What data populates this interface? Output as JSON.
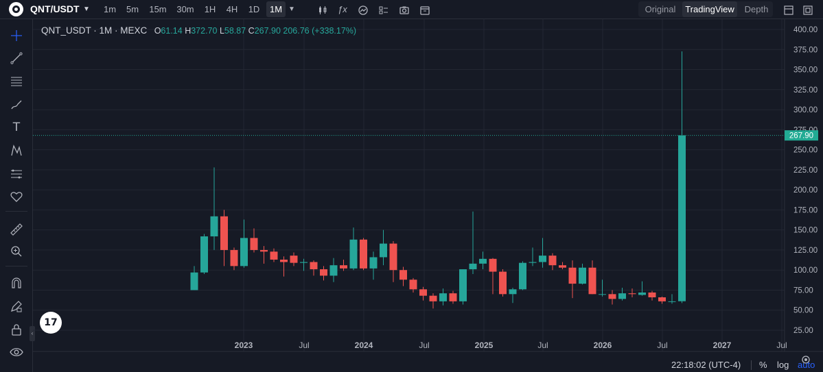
{
  "toolbar": {
    "symbol": "QNT/USDT",
    "intervals": [
      "1m",
      "5m",
      "15m",
      "30m",
      "1H",
      "4H",
      "1D",
      "1M"
    ],
    "active_interval": "1M",
    "views": [
      "Original",
      "TradingView",
      "Depth"
    ],
    "active_view": "TradingView"
  },
  "legend": {
    "title": "QNT_USDT · 1M · MEXC",
    "o_label": "O",
    "o_value": "61.14",
    "h_label": "H",
    "h_value": "372.70",
    "l_label": "L",
    "l_value": "58.87",
    "c_label": "C",
    "c_value": "267.90",
    "change": "206.76 (+338.17%)"
  },
  "price_axis": {
    "labels": [
      "400.00",
      "375.00",
      "350.00",
      "325.00",
      "300.00",
      "275.00",
      "250.00",
      "225.00",
      "200.00",
      "175.00",
      "150.00",
      "125.00",
      "100.00",
      "75.00",
      "50.00",
      "25.00"
    ],
    "last_price": "267.90"
  },
  "time_axis": {
    "labels": [
      "2023",
      "Jul",
      "2024",
      "Jul",
      "2025",
      "Jul",
      "2026",
      "Jul",
      "2027",
      "Jul"
    ]
  },
  "footer": {
    "time": "22:18:02 (UTC-4)",
    "percent": "%",
    "log": "log",
    "auto": "auto"
  },
  "tv_logo": "17",
  "colors": {
    "up": "#26a69a",
    "down": "#ef5350",
    "background": "#161a25",
    "grid": "#232733",
    "last_price_line": "#22ab94",
    "auto_active": "#2962ff"
  },
  "chart_data": {
    "type": "candlestick",
    "ylim": [
      20,
      405
    ],
    "y_ticks": [
      25,
      50,
      75,
      100,
      125,
      150,
      175,
      200,
      225,
      250,
      275,
      300,
      325,
      350,
      375,
      400
    ],
    "candles": [
      {
        "o": 75,
        "h": 105,
        "l": 75,
        "c": 97
      },
      {
        "o": 97,
        "h": 145,
        "l": 95,
        "c": 142
      },
      {
        "o": 142,
        "h": 228,
        "l": 125,
        "c": 167
      },
      {
        "o": 167,
        "h": 175,
        "l": 105,
        "c": 125
      },
      {
        "o": 125,
        "h": 128,
        "l": 100,
        "c": 105
      },
      {
        "o": 105,
        "h": 163,
        "l": 103,
        "c": 140
      },
      {
        "o": 140,
        "h": 152,
        "l": 122,
        "c": 125
      },
      {
        "o": 125,
        "h": 130,
        "l": 108,
        "c": 123
      },
      {
        "o": 123,
        "h": 127,
        "l": 110,
        "c": 113
      },
      {
        "o": 113,
        "h": 117,
        "l": 92,
        "c": 110
      },
      {
        "o": 118,
        "h": 122,
        "l": 105,
        "c": 109
      },
      {
        "o": 109,
        "h": 114,
        "l": 99,
        "c": 110
      },
      {
        "o": 110,
        "h": 112,
        "l": 93,
        "c": 101
      },
      {
        "o": 101,
        "h": 105,
        "l": 87,
        "c": 93
      },
      {
        "o": 93,
        "h": 115,
        "l": 85,
        "c": 106
      },
      {
        "o": 106,
        "h": 113,
        "l": 99,
        "c": 102
      },
      {
        "o": 102,
        "h": 153,
        "l": 100,
        "c": 138
      },
      {
        "o": 138,
        "h": 140,
        "l": 100,
        "c": 102
      },
      {
        "o": 102,
        "h": 123,
        "l": 88,
        "c": 116
      },
      {
        "o": 116,
        "h": 150,
        "l": 106,
        "c": 133
      },
      {
        "o": 133,
        "h": 136,
        "l": 85,
        "c": 100
      },
      {
        "o": 100,
        "h": 104,
        "l": 80,
        "c": 88
      },
      {
        "o": 88,
        "h": 90,
        "l": 72,
        "c": 76
      },
      {
        "o": 76,
        "h": 79,
        "l": 62,
        "c": 68
      },
      {
        "o": 68,
        "h": 71,
        "l": 52,
        "c": 61
      },
      {
        "o": 61,
        "h": 77,
        "l": 56,
        "c": 71
      },
      {
        "o": 71,
        "h": 74,
        "l": 58,
        "c": 61
      },
      {
        "o": 61,
        "h": 101,
        "l": 57,
        "c": 101
      },
      {
        "o": 101,
        "h": 173,
        "l": 95,
        "c": 108
      },
      {
        "o": 108,
        "h": 123,
        "l": 101,
        "c": 114
      },
      {
        "o": 114,
        "h": 115,
        "l": 70,
        "c": 98
      },
      {
        "o": 98,
        "h": 101,
        "l": 67,
        "c": 70
      },
      {
        "o": 70,
        "h": 78,
        "l": 59,
        "c": 76
      },
      {
        "o": 76,
        "h": 111,
        "l": 75,
        "c": 109
      },
      {
        "o": 109,
        "h": 128,
        "l": 105,
        "c": 110
      },
      {
        "o": 110,
        "h": 140,
        "l": 103,
        "c": 118
      },
      {
        "o": 118,
        "h": 121,
        "l": 100,
        "c": 106
      },
      {
        "o": 106,
        "h": 110,
        "l": 101,
        "c": 103
      },
      {
        "o": 103,
        "h": 112,
        "l": 65,
        "c": 83
      },
      {
        "o": 83,
        "h": 108,
        "l": 82,
        "c": 103
      },
      {
        "o": 103,
        "h": 112,
        "l": 70,
        "c": 70
      },
      {
        "o": 70,
        "h": 88,
        "l": 67,
        "c": 70
      },
      {
        "o": 70,
        "h": 75,
        "l": 57,
        "c": 64
      },
      {
        "o": 64,
        "h": 78,
        "l": 62,
        "c": 71
      },
      {
        "o": 71,
        "h": 77,
        "l": 66,
        "c": 70
      },
      {
        "o": 69,
        "h": 86,
        "l": 68,
        "c": 72
      },
      {
        "o": 72,
        "h": 74,
        "l": 62,
        "c": 66
      },
      {
        "o": 66,
        "h": 67,
        "l": 58,
        "c": 61
      },
      {
        "o": 61,
        "h": 70,
        "l": 58,
        "c": 61
      },
      {
        "o": 61.14,
        "h": 372.7,
        "l": 58.87,
        "c": 267.9
      }
    ]
  }
}
